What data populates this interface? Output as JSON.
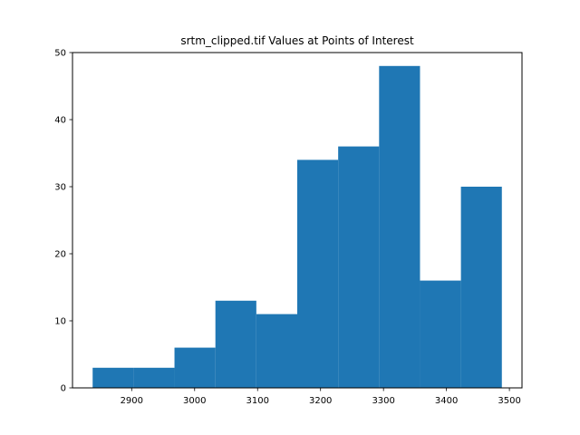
{
  "chart_data": {
    "type": "bar",
    "title": "srtm_clipped.tif Values at Points of Interest",
    "xlabel": "",
    "ylabel": "",
    "bin_edges": [
      2838,
      2903,
      2968,
      3033,
      3098,
      3163,
      3228,
      3293,
      3358,
      3423,
      3488
    ],
    "values": [
      3,
      3,
      6,
      13,
      11,
      34,
      36,
      48,
      16,
      30
    ],
    "xlim": [
      2806,
      3520
    ],
    "ylim": [
      0,
      50
    ],
    "x_ticks": [
      2900,
      3000,
      3100,
      3200,
      3300,
      3400,
      3500
    ],
    "y_ticks": [
      0,
      10,
      20,
      30,
      40,
      50
    ],
    "grid": false,
    "bar_color": "#1f77b4"
  }
}
